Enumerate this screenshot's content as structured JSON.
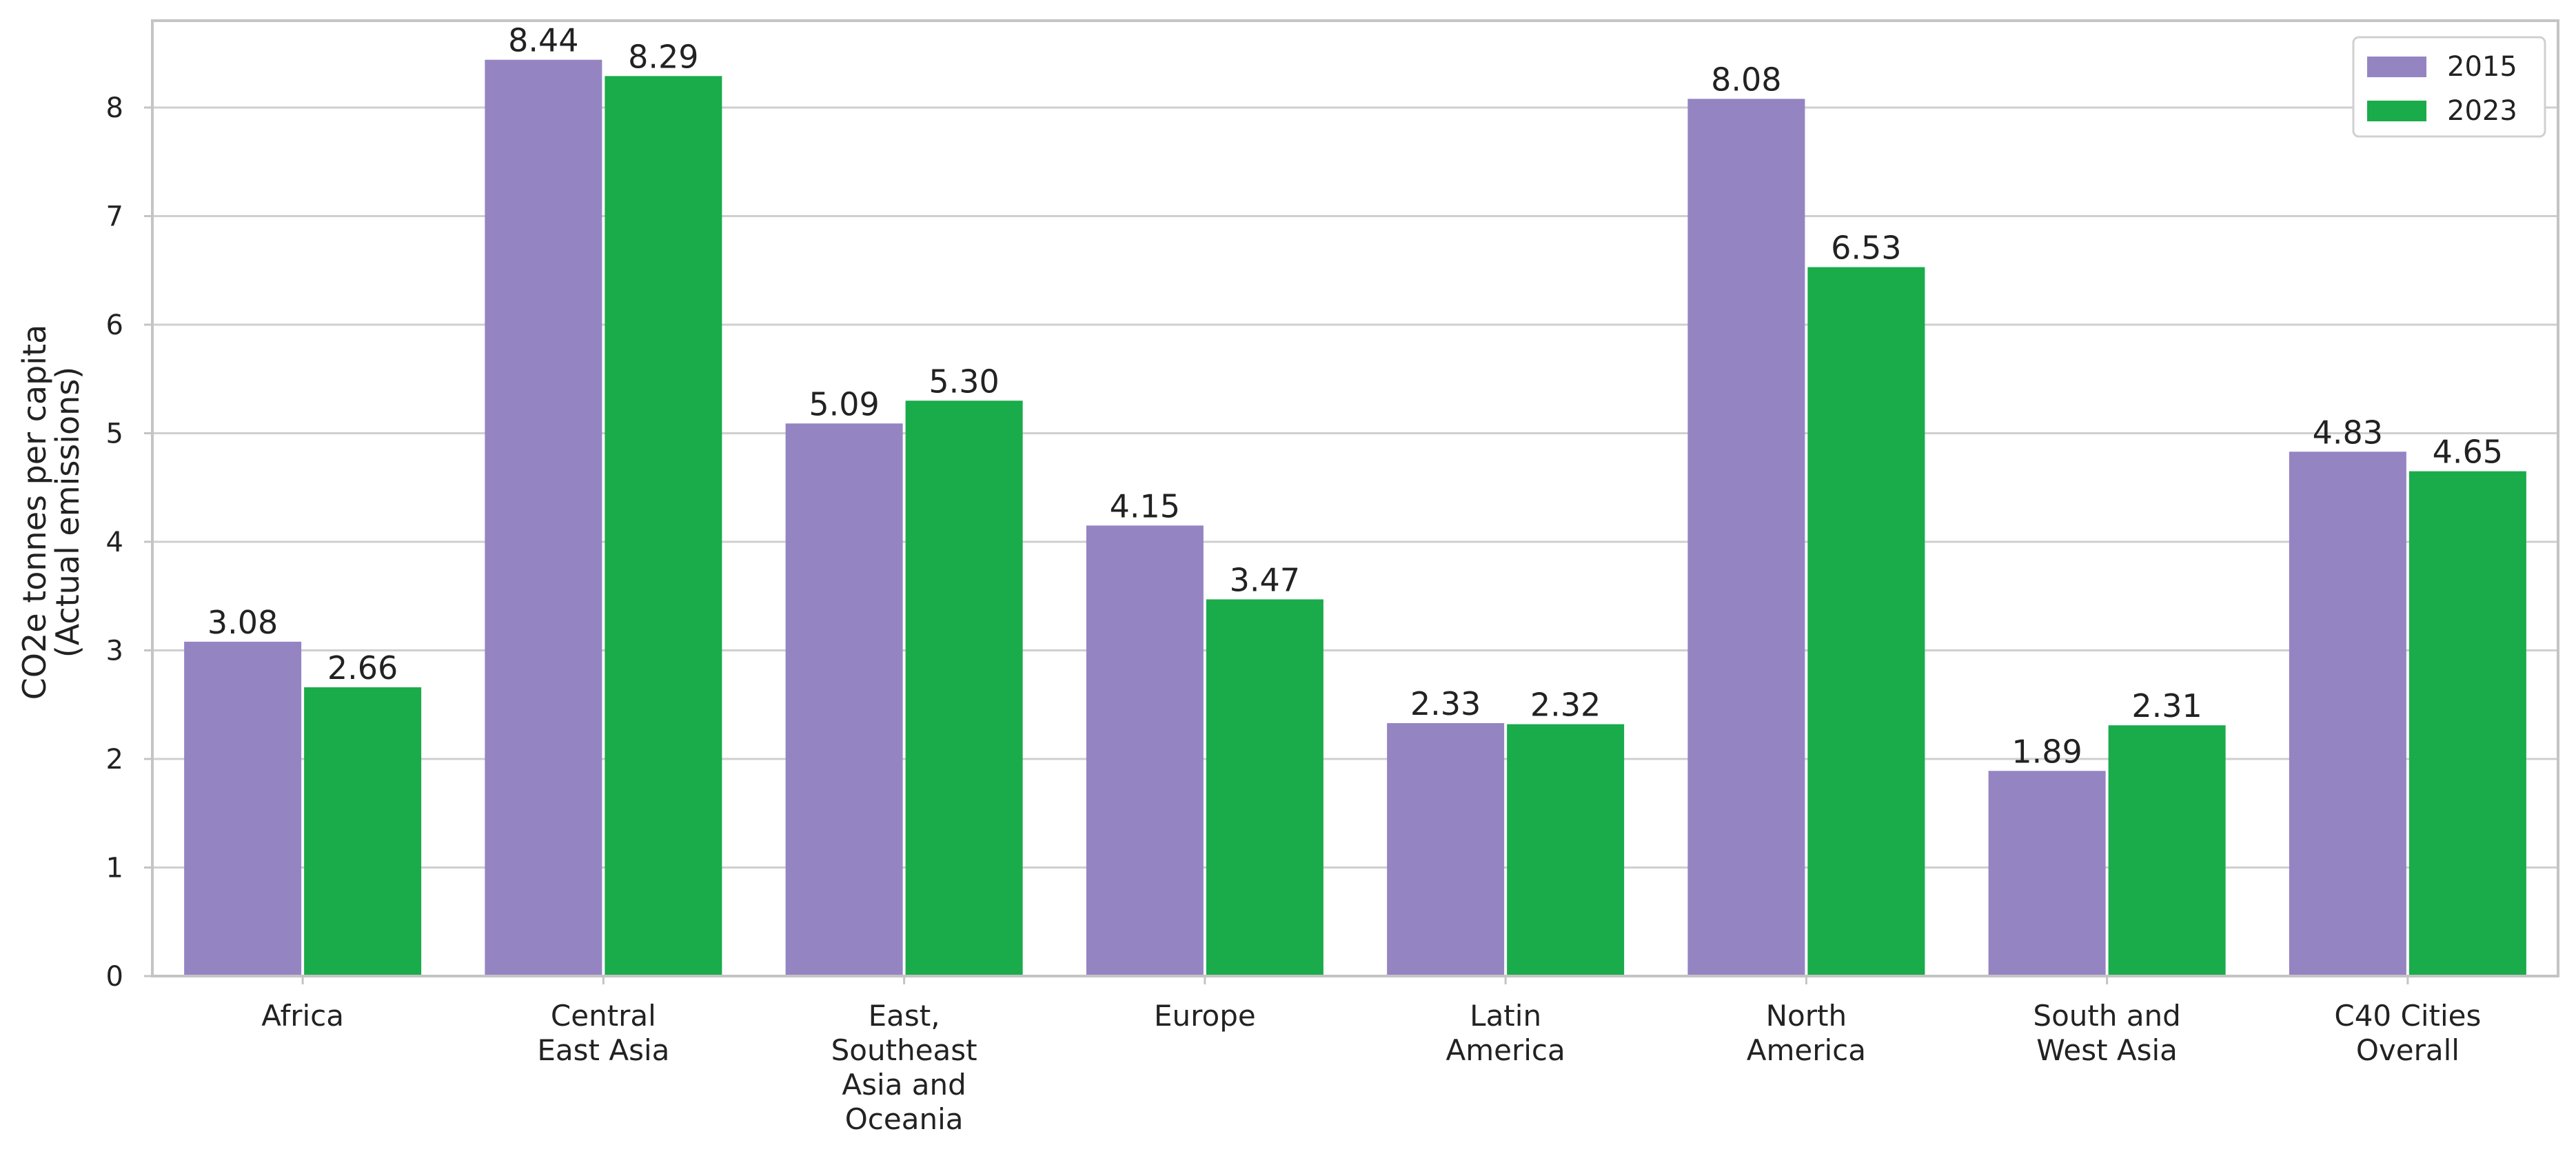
{
  "chart_data": {
    "type": "bar",
    "title": "",
    "xlabel": "",
    "ylabel": [
      "CO2e tonnes per capita",
      "(Actual emissions)"
    ],
    "ylim": [
      0,
      8.8
    ],
    "yticks": [
      0,
      1,
      2,
      3,
      4,
      5,
      6,
      7,
      8
    ],
    "grid": true,
    "legend_position": "top-right",
    "categories": [
      [
        "Africa"
      ],
      [
        "Central",
        "East Asia"
      ],
      [
        "East,",
        "Southeast",
        "Asia and",
        "Oceania"
      ],
      [
        "Europe"
      ],
      [
        "Latin",
        "America"
      ],
      [
        "North",
        "America"
      ],
      [
        "South and",
        "West Asia"
      ],
      [
        "C40 Cities",
        "Overall"
      ]
    ],
    "series": [
      {
        "name": "2015",
        "color": "#9584c2",
        "values": [
          3.08,
          8.44,
          5.09,
          4.15,
          2.33,
          8.08,
          1.89,
          4.83
        ],
        "labels": [
          "3.08",
          "8.44",
          "5.09",
          "4.15",
          "2.33",
          "8.08",
          "1.89",
          "4.83"
        ]
      },
      {
        "name": "2023",
        "color": "#1aab4b",
        "values": [
          2.66,
          8.29,
          5.3,
          3.47,
          2.32,
          6.53,
          2.31,
          4.65
        ],
        "labels": [
          "2.66",
          "8.29",
          "5.30",
          "3.47",
          "2.32",
          "6.53",
          "2.31",
          "4.65"
        ]
      }
    ]
  }
}
